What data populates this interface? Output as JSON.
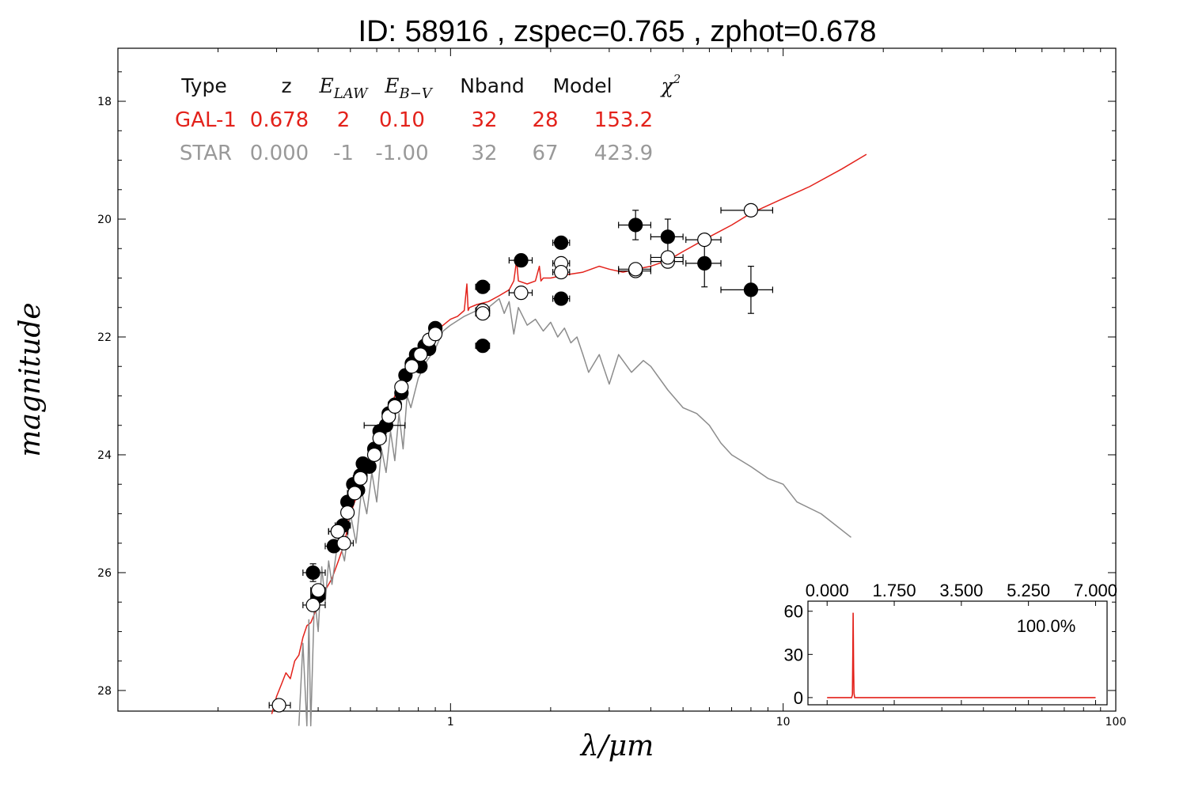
{
  "chart_data": {
    "type": "scatter",
    "title": "ID:  58916 , zspec=0.765 , zphot=0.678",
    "xlabel": "λ/μm",
    "ylabel": "magnitude",
    "xscale": "log",
    "xlim": [
      0.1,
      100
    ],
    "ylim": [
      28.35,
      17.1
    ],
    "y_inverted": true,
    "x_tick_labels": [
      {
        "value": 1,
        "label": "1"
      },
      {
        "value": 10,
        "label": "10"
      },
      {
        "value": 100,
        "label": "100"
      }
    ],
    "y_tick_labels": [
      {
        "value": 18,
        "label": "18"
      },
      {
        "value": 20,
        "label": "20"
      },
      {
        "value": 22,
        "label": "22"
      },
      {
        "value": 24,
        "label": "24"
      },
      {
        "value": 26,
        "label": "26"
      },
      {
        "value": 28,
        "label": "28"
      }
    ],
    "fit_table": {
      "columns": [
        "Type",
        "z",
        "E_LAW",
        "E_B−V",
        "Nband",
        "Model",
        "χ2"
      ],
      "rows": [
        {
          "color": "#e3221b",
          "cells": [
            "GAL-1",
            "0.678",
            "2",
            "0.10",
            "32",
            "28",
            "153.2"
          ]
        },
        {
          "color": "#999999",
          "cells": [
            "STAR",
            "0.000",
            "-1",
            "-1.00",
            "32",
            "67",
            "423.9"
          ]
        }
      ]
    },
    "series": [
      {
        "kind": "line",
        "color": "#e3221b",
        "x": [
          0.29,
          0.3,
          0.31,
          0.32,
          0.33,
          0.34,
          0.35,
          0.36,
          0.37,
          0.38,
          0.39,
          0.4,
          0.42,
          0.44,
          0.46,
          0.48,
          0.5,
          0.53,
          0.56,
          0.6,
          0.64,
          0.68,
          0.72,
          0.76,
          0.8,
          0.85,
          0.9,
          0.95,
          1.0,
          1.05,
          1.1,
          1.12,
          1.13,
          1.14,
          1.2,
          1.3,
          1.4,
          1.5,
          1.55,
          1.58,
          1.6,
          1.7,
          1.8,
          1.85,
          1.87,
          1.9,
          2.0,
          2.2,
          2.5,
          2.8,
          3.0,
          3.3,
          3.6,
          4.0,
          4.5,
          5.0,
          6.0,
          7.0,
          8.0,
          10.0,
          12.0,
          15.0,
          17.8
        ],
        "y": [
          28.4,
          28.1,
          27.9,
          27.7,
          27.8,
          27.5,
          27.4,
          27.1,
          26.9,
          26.85,
          26.7,
          26.5,
          26.3,
          26.1,
          25.8,
          25.5,
          25.0,
          24.6,
          24.2,
          23.8,
          23.4,
          23.0,
          22.7,
          22.4,
          22.2,
          22.0,
          21.9,
          21.8,
          21.7,
          21.65,
          21.55,
          21.1,
          21.55,
          21.5,
          21.45,
          21.4,
          21.3,
          21.2,
          21.05,
          20.7,
          21.05,
          21.1,
          21.05,
          20.8,
          21.05,
          21.0,
          21.0,
          20.95,
          20.9,
          20.8,
          20.85,
          20.9,
          20.85,
          20.8,
          20.7,
          20.55,
          20.3,
          20.1,
          19.9,
          19.65,
          19.45,
          19.15,
          18.9
        ]
      },
      {
        "kind": "line",
        "color": "#8c8c8c",
        "x": [
          0.35,
          0.36,
          0.37,
          0.375,
          0.38,
          0.39,
          0.4,
          0.41,
          0.42,
          0.43,
          0.44,
          0.46,
          0.48,
          0.5,
          0.52,
          0.54,
          0.56,
          0.58,
          0.6,
          0.62,
          0.64,
          0.66,
          0.68,
          0.7,
          0.72,
          0.74,
          0.76,
          0.8,
          0.85,
          0.9,
          0.95,
          1.0,
          1.1,
          1.2,
          1.3,
          1.4,
          1.45,
          1.5,
          1.55,
          1.6,
          1.7,
          1.8,
          1.9,
          2.0,
          2.1,
          2.2,
          2.3,
          2.4,
          2.5,
          2.6,
          2.8,
          3.0,
          3.2,
          3.5,
          3.8,
          4.0,
          4.5,
          5.0,
          5.5,
          6.0,
          6.5,
          7.0,
          8.0,
          9.0,
          10.0,
          11.0,
          13.0,
          16.0
        ],
        "y": [
          28.6,
          27.2,
          28.6,
          26.8,
          28.6,
          26.4,
          27.0,
          25.9,
          26.5,
          25.8,
          26.2,
          25.4,
          25.8,
          25.0,
          25.5,
          24.6,
          25.0,
          24.3,
          24.8,
          23.9,
          24.3,
          23.6,
          24.1,
          23.3,
          23.9,
          23.0,
          23.2,
          22.7,
          22.4,
          22.2,
          21.9,
          21.8,
          21.65,
          21.55,
          21.5,
          21.35,
          21.6,
          21.4,
          21.95,
          21.5,
          21.8,
          21.7,
          21.9,
          21.75,
          22.0,
          21.85,
          22.1,
          22.0,
          22.3,
          22.6,
          22.3,
          22.8,
          22.3,
          22.6,
          22.4,
          22.5,
          22.9,
          23.2,
          23.3,
          23.5,
          23.8,
          24.0,
          24.2,
          24.4,
          24.5,
          24.8,
          25.0,
          25.4
        ]
      },
      {
        "kind": "points",
        "name": "observed",
        "fill": "#000000",
        "points": [
          {
            "x": 0.386,
            "y": 26.0,
            "xerr": [
              0.36,
              0.42
            ],
            "yerr": [
              25.85,
              26.15
            ]
          },
          {
            "x": 0.4,
            "y": 26.4,
            "xerr": [
              0.38,
              0.42
            ],
            "yerr": [
              26.25,
              26.55
            ]
          },
          {
            "x": 0.446,
            "y": 25.55,
            "xerr": [
              0.42,
              0.47
            ],
            "yerr": [
              25.45,
              25.65
            ]
          },
          {
            "x": 0.458,
            "y": 25.3,
            "xerr": [
              0.43,
              0.49
            ],
            "yerr": [
              25.2,
              25.4
            ]
          },
          {
            "x": 0.475,
            "y": 25.2,
            "xerr": [
              0.45,
              0.5
            ],
            "yerr": [
              25.1,
              25.3
            ]
          },
          {
            "x": 0.49,
            "y": 24.8,
            "xerr": [
              0.47,
              0.51
            ],
            "yerr": [
              24.7,
              24.9
            ]
          },
          {
            "x": 0.51,
            "y": 24.5,
            "xerr": [
              0.49,
              0.53
            ],
            "yerr": [
              24.4,
              24.6
            ]
          },
          {
            "x": 0.527,
            "y": 24.6,
            "xerr": [
              0.51,
              0.55
            ],
            "yerr": [
              24.5,
              24.7
            ]
          },
          {
            "x": 0.536,
            "y": 24.35,
            "xerr": [
              0.52,
              0.55
            ],
            "yerr": [
              24.25,
              24.45
            ]
          },
          {
            "x": 0.545,
            "y": 24.15,
            "xerr": [
              0.53,
              0.56
            ],
            "yerr": [
              24.05,
              24.25
            ]
          },
          {
            "x": 0.57,
            "y": 24.2,
            "xerr": [
              0.55,
              0.59
            ],
            "yerr": [
              24.1,
              24.3
            ]
          },
          {
            "x": 0.59,
            "y": 23.9,
            "xerr": [
              0.57,
              0.61
            ],
            "yerr": [
              23.8,
              24.0
            ]
          },
          {
            "x": 0.612,
            "y": 23.6,
            "xerr": [
              0.59,
              0.64
            ],
            "yerr": [
              23.5,
              23.7
            ]
          },
          {
            "x": 0.64,
            "y": 23.5,
            "xerr": [
              0.55,
              0.73
            ],
            "yerr": [
              23.4,
              23.6
            ]
          },
          {
            "x": 0.652,
            "y": 23.3,
            "xerr": [
              0.63,
              0.68
            ],
            "yerr": [
              23.2,
              23.4
            ]
          },
          {
            "x": 0.68,
            "y": 23.15,
            "xerr": [
              0.65,
              0.71
            ],
            "yerr": [
              23.05,
              23.25
            ]
          },
          {
            "x": 0.712,
            "y": 22.95,
            "xerr": [
              0.69,
              0.74
            ],
            "yerr": [
              22.85,
              23.05
            ]
          },
          {
            "x": 0.732,
            "y": 22.65,
            "xerr": [
              0.71,
              0.76
            ],
            "yerr": [
              22.55,
              22.75
            ]
          },
          {
            "x": 0.765,
            "y": 22.45,
            "xerr": [
              0.74,
              0.79
            ],
            "yerr": [
              22.35,
              22.55
            ]
          },
          {
            "x": 0.788,
            "y": 22.3,
            "xerr": [
              0.76,
              0.82
            ],
            "yerr": [
              22.2,
              22.4
            ]
          },
          {
            "x": 0.812,
            "y": 22.5,
            "xerr": [
              0.79,
              0.84
            ],
            "yerr": [
              22.4,
              22.6
            ]
          },
          {
            "x": 0.836,
            "y": 22.15,
            "xerr": [
              0.81,
              0.86
            ],
            "yerr": [
              22.05,
              22.25
            ]
          },
          {
            "x": 0.862,
            "y": 22.2,
            "xerr": [
              0.84,
              0.89
            ],
            "yerr": [
              22.1,
              22.3
            ]
          },
          {
            "x": 0.9,
            "y": 21.85,
            "xerr": [
              0.87,
              0.93
            ],
            "yerr": [
              21.75,
              21.95
            ]
          },
          {
            "x": 1.25,
            "y": 21.15,
            "xerr": [
              1.19,
              1.31
            ],
            "yerr": [
              21.07,
              21.23
            ]
          },
          {
            "x": 1.25,
            "y": 22.15,
            "xerr": [
              1.19,
              1.31
            ],
            "yerr": [
              22.05,
              22.25
            ]
          },
          {
            "x": 1.63,
            "y": 20.7,
            "xerr": [
              1.5,
              1.76
            ],
            "yerr": [
              20.62,
              20.78
            ]
          },
          {
            "x": 2.15,
            "y": 20.4,
            "xerr": [
              2.03,
              2.28
            ],
            "yerr": [
              20.32,
              20.48
            ]
          },
          {
            "x": 2.15,
            "y": 21.35,
            "xerr": [
              2.03,
              2.28
            ],
            "yerr": [
              21.25,
              21.45
            ]
          },
          {
            "x": 3.6,
            "y": 20.1,
            "xerr": [
              3.2,
              4.0
            ],
            "yerr": [
              19.85,
              20.35
            ]
          },
          {
            "x": 4.5,
            "y": 20.3,
            "xerr": [
              4.0,
              5.0
            ],
            "yerr": [
              20.0,
              20.55
            ]
          },
          {
            "x": 5.8,
            "y": 20.75,
            "xerr": [
              5.1,
              6.5
            ],
            "yerr": [
              20.35,
              21.15
            ]
          },
          {
            "x": 8.0,
            "y": 21.2,
            "xerr": [
              6.5,
              9.3
            ],
            "yerr": [
              20.8,
              21.6
            ]
          }
        ]
      },
      {
        "kind": "points",
        "name": "model",
        "fill": "#ffffff",
        "points": [
          {
            "x": 0.305,
            "y": 28.25,
            "xerr": [
              0.285,
              0.33
            ]
          },
          {
            "x": 0.386,
            "y": 26.55,
            "xerr": [
              0.36,
              0.42
            ]
          },
          {
            "x": 0.4,
            "y": 26.3,
            "xerr": [
              0.38,
              0.42
            ]
          },
          {
            "x": 0.458,
            "y": 25.3,
            "xerr": [
              0.43,
              0.49
            ]
          },
          {
            "x": 0.478,
            "y": 25.5,
            "xerr": [
              0.45,
              0.51
            ]
          },
          {
            "x": 0.49,
            "y": 24.98,
            "xerr": [
              0.47,
              0.51
            ]
          },
          {
            "x": 0.515,
            "y": 24.65,
            "xerr": [
              0.49,
              0.54
            ]
          },
          {
            "x": 0.536,
            "y": 24.4,
            "xerr": [
              0.51,
              0.56
            ]
          },
          {
            "x": 0.59,
            "y": 24.0,
            "xerr": [
              0.57,
              0.61
            ]
          },
          {
            "x": 0.612,
            "y": 23.72,
            "xerr": [
              0.59,
              0.64
            ]
          },
          {
            "x": 0.652,
            "y": 23.35,
            "xerr": [
              0.63,
              0.68
            ]
          },
          {
            "x": 0.68,
            "y": 23.18,
            "xerr": [
              0.65,
              0.71
            ]
          },
          {
            "x": 0.712,
            "y": 22.85,
            "xerr": [
              0.69,
              0.74
            ]
          },
          {
            "x": 0.765,
            "y": 22.5,
            "xerr": [
              0.74,
              0.79
            ]
          },
          {
            "x": 0.812,
            "y": 22.3,
            "xerr": [
              0.79,
              0.84
            ]
          },
          {
            "x": 0.862,
            "y": 22.05,
            "xerr": [
              0.84,
              0.89
            ]
          },
          {
            "x": 0.9,
            "y": 21.95,
            "xerr": [
              0.87,
              0.93
            ]
          },
          {
            "x": 1.25,
            "y": 21.55,
            "xerr": [
              1.19,
              1.31
            ]
          },
          {
            "x": 1.25,
            "y": 21.6,
            "xerr": [
              1.19,
              1.31
            ]
          },
          {
            "x": 1.63,
            "y": 21.25,
            "xerr": [
              1.5,
              1.76
            ]
          },
          {
            "x": 2.15,
            "y": 20.75,
            "xerr": [
              2.03,
              2.28
            ]
          },
          {
            "x": 2.15,
            "y": 20.9,
            "xerr": [
              2.03,
              2.28
            ]
          },
          {
            "x": 3.6,
            "y": 20.88,
            "xerr": [
              3.2,
              4.0
            ]
          },
          {
            "x": 3.6,
            "y": 20.85,
            "xerr": [
              3.2,
              4.0
            ]
          },
          {
            "x": 4.5,
            "y": 20.72,
            "xerr": [
              4.0,
              5.0
            ]
          },
          {
            "x": 4.5,
            "y": 20.65,
            "xerr": [
              4.0,
              5.0
            ]
          },
          {
            "x": 5.8,
            "y": 20.35,
            "xerr": [
              5.1,
              6.5
            ]
          },
          {
            "x": 8.0,
            "y": 19.85,
            "xerr": [
              6.5,
              9.3
            ]
          }
        ]
      }
    ],
    "inset": {
      "type": "line",
      "color": "#e3221b",
      "xlim": [
        -0.5,
        7.3
      ],
      "ylim": [
        -5,
        67
      ],
      "x_tick_labels": [
        "0.000",
        "1.750",
        "3.500",
        "5.250",
        "7.000"
      ],
      "x_tick_values": [
        0,
        1.75,
        3.5,
        5.25,
        7.0
      ],
      "y_tick_labels": [
        "0",
        "30",
        "60"
      ],
      "y_tick_values": [
        0,
        30,
        60
      ],
      "annotation": "100.0%",
      "x": [
        0.0,
        0.64,
        0.66,
        0.67,
        0.678,
        0.69,
        0.7,
        0.72,
        7.0
      ],
      "y": [
        0,
        0,
        2,
        30,
        59,
        20,
        3,
        0,
        0
      ]
    }
  }
}
